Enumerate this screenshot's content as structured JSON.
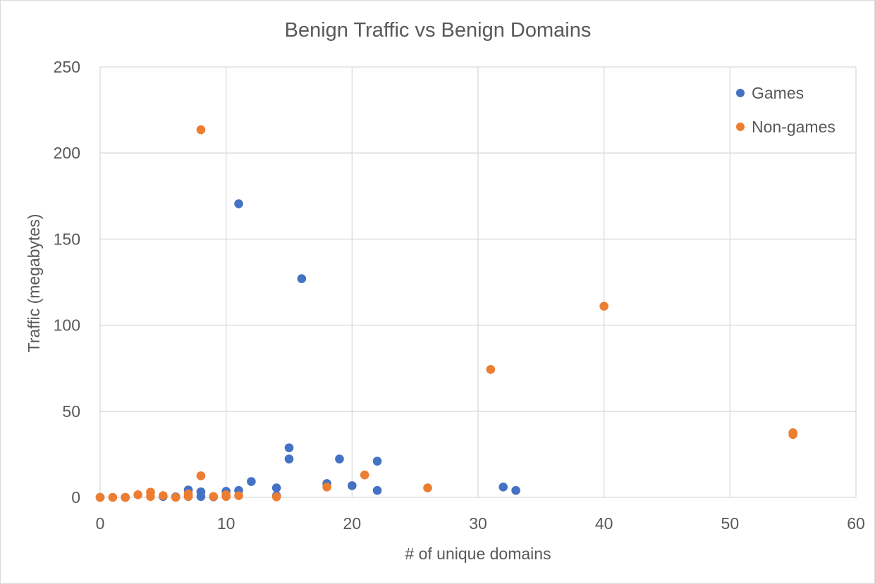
{
  "chart_data": {
    "type": "scatter",
    "title": "Benign Traffic vs Benign Domains",
    "xlabel": "# of unique domains",
    "ylabel": "Traffic (megabytes)",
    "xlim": [
      0,
      60
    ],
    "ylim": [
      0,
      250
    ],
    "x_ticks": [
      0,
      10,
      20,
      30,
      40,
      50,
      60
    ],
    "y_ticks": [
      0,
      50,
      100,
      150,
      200,
      250
    ],
    "grid": true,
    "legend_position": "top-right",
    "series": [
      {
        "name": "Games",
        "color": "#4472C4",
        "points": [
          [
            0,
            0
          ],
          [
            2,
            0
          ],
          [
            5,
            0.5
          ],
          [
            6,
            0.3
          ],
          [
            7,
            0.5
          ],
          [
            7,
            4.3
          ],
          [
            8,
            0.5
          ],
          [
            8,
            3.2
          ],
          [
            9,
            0.3
          ],
          [
            10,
            3.5
          ],
          [
            11,
            4
          ],
          [
            11,
            170.5
          ],
          [
            12,
            9.2
          ],
          [
            14,
            1
          ],
          [
            14,
            5.5
          ],
          [
            15,
            22.3
          ],
          [
            15,
            28.8
          ],
          [
            16,
            127
          ],
          [
            18,
            8
          ],
          [
            19,
            22.3
          ],
          [
            20,
            6.8
          ],
          [
            22,
            4
          ],
          [
            22,
            21
          ],
          [
            32,
            6
          ],
          [
            33,
            4
          ]
        ]
      },
      {
        "name": "Non-games",
        "color": "#ED7D31",
        "points": [
          [
            0,
            0
          ],
          [
            1,
            0
          ],
          [
            2,
            0
          ],
          [
            3,
            1.5
          ],
          [
            4,
            0.5
          ],
          [
            4,
            3
          ],
          [
            5,
            1
          ],
          [
            6,
            0
          ],
          [
            7,
            0.5
          ],
          [
            7,
            2
          ],
          [
            8,
            12.5
          ],
          [
            8,
            213.5
          ],
          [
            9,
            0.5
          ],
          [
            10,
            0.5
          ],
          [
            10,
            1.5
          ],
          [
            11,
            1
          ],
          [
            14,
            0.3
          ],
          [
            18,
            6
          ],
          [
            21,
            13
          ],
          [
            26,
            5.5
          ],
          [
            31,
            74.3
          ],
          [
            40,
            111
          ],
          [
            55,
            36.5
          ],
          [
            55,
            37.5
          ]
        ]
      }
    ]
  }
}
